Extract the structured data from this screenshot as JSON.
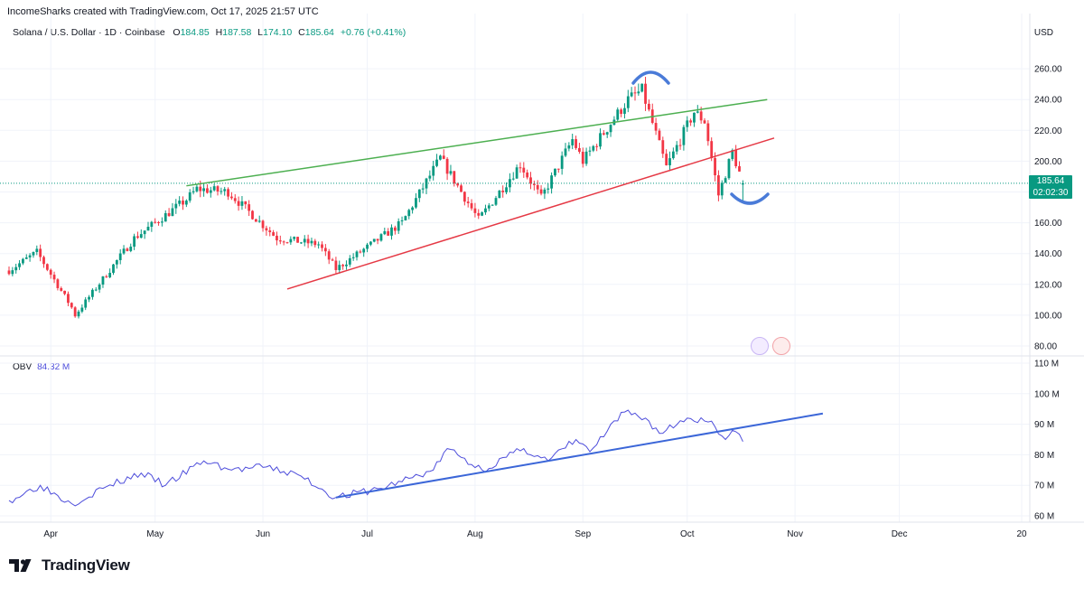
{
  "header": {
    "attribution": "IncomeSharks created with TradingView.com, Oct 17, 2025 21:57 UTC"
  },
  "symbol": {
    "name": "Solana / U.S. Dollar · 1D · Coinbase",
    "o_label": "O",
    "o": "184.85",
    "h_label": "H",
    "h": "187.58",
    "l_label": "L",
    "l": "174.10",
    "c_label": "C",
    "c": "185.64",
    "change": "+0.76 (+0.41%)"
  },
  "currency": "USD",
  "last_price": {
    "price": "185.64",
    "countdown": "02:02:30"
  },
  "obv": {
    "label": "OBV",
    "value": "84.32 M"
  },
  "footer": {
    "brand": "TradingView"
  },
  "colors": {
    "up": "#089981",
    "down": "#f23645",
    "obv": "#4d4ddb",
    "green_line": "#4caf50",
    "red_line": "#e53945",
    "blue_line": "#3b66d8"
  },
  "chart_data": [
    {
      "type": "candlestick",
      "title": "Solana / U.S. Dollar · 1D · Coinbase",
      "ylabel": "USD",
      "yticks": [
        80,
        100,
        120,
        140,
        160,
        180,
        200,
        220,
        240,
        260
      ],
      "xticks": [
        "Apr",
        "May",
        "Jun",
        "Jul",
        "Aug",
        "Sep",
        "Oct",
        "Nov",
        "Dec",
        "20"
      ],
      "x_domain_days": [
        0,
        270
      ],
      "x_domain_labels": [
        "Mar 20",
        "Dec 15"
      ],
      "key_points": [
        {
          "date": "Mar 20",
          "price": 129
        },
        {
          "date": "Mar 28",
          "price": 141
        },
        {
          "date": "Apr 7",
          "price": 105
        },
        {
          "date": "Apr 8",
          "price": 100
        },
        {
          "date": "Apr 25",
          "price": 150
        },
        {
          "date": "May 10",
          "price": 175
        },
        {
          "date": "May 13",
          "price": 182
        },
        {
          "date": "May 22",
          "price": 180
        },
        {
          "date": "Jun 5",
          "price": 150
        },
        {
          "date": "Jun 17",
          "price": 146
        },
        {
          "date": "Jun 22",
          "price": 130
        },
        {
          "date": "Jul 11",
          "price": 160
        },
        {
          "date": "Jul 22",
          "price": 202
        },
        {
          "date": "Aug 2",
          "price": 162
        },
        {
          "date": "Aug 14",
          "price": 198
        },
        {
          "date": "Aug 20",
          "price": 176
        },
        {
          "date": "Aug 29",
          "price": 214
        },
        {
          "date": "Sep 1",
          "price": 200
        },
        {
          "date": "Sep 14",
          "price": 240
        },
        {
          "date": "Sep 18",
          "price": 246
        },
        {
          "date": "Sep 25",
          "price": 196
        },
        {
          "date": "Oct 3",
          "price": 232
        },
        {
          "date": "Oct 6",
          "price": 226
        },
        {
          "date": "Oct 10",
          "price": 178
        },
        {
          "date": "Oct 14",
          "price": 206
        },
        {
          "date": "Oct 17",
          "price": 185.64
        }
      ],
      "trendlines": [
        {
          "name": "upper",
          "color": "green",
          "from": {
            "date": "May 10",
            "price": 184
          },
          "to": {
            "date": "Oct 24",
            "price": 240
          }
        },
        {
          "name": "lower",
          "color": "red",
          "from": {
            "date": "Jun 8",
            "price": 117
          },
          "to": {
            "date": "Oct 26",
            "price": 215
          }
        }
      ]
    },
    {
      "type": "line",
      "title": "OBV",
      "yticks_label": [
        "60 M",
        "70 M",
        "80 M",
        "90 M",
        "100 M",
        "110 M"
      ],
      "yticks": [
        60,
        70,
        80,
        90,
        100,
        110
      ],
      "points": [
        {
          "date": "Mar 20",
          "value": 65
        },
        {
          "date": "Mar 29",
          "value": 70
        },
        {
          "date": "Apr 7",
          "value": 64
        },
        {
          "date": "Apr 16",
          "value": 69
        },
        {
          "date": "Apr 27",
          "value": 74
        },
        {
          "date": "May 4",
          "value": 70
        },
        {
          "date": "May 15",
          "value": 78
        },
        {
          "date": "May 23",
          "value": 75
        },
        {
          "date": "Jun 2",
          "value": 76
        },
        {
          "date": "Jun 12",
          "value": 73
        },
        {
          "date": "Jun 22",
          "value": 66
        },
        {
          "date": "Jul 5",
          "value": 69
        },
        {
          "date": "Jul 20",
          "value": 75
        },
        {
          "date": "Jul 24",
          "value": 82
        },
        {
          "date": "Aug 3",
          "value": 75
        },
        {
          "date": "Aug 15",
          "value": 82
        },
        {
          "date": "Aug 22",
          "value": 78
        },
        {
          "date": "Aug 30",
          "value": 85
        },
        {
          "date": "Sep 3",
          "value": 81
        },
        {
          "date": "Sep 13",
          "value": 94
        },
        {
          "date": "Sep 19",
          "value": 92
        },
        {
          "date": "Sep 23",
          "value": 87
        },
        {
          "date": "Oct 1",
          "value": 92
        },
        {
          "date": "Oct 8",
          "value": 91
        },
        {
          "date": "Oct 12",
          "value": 85
        },
        {
          "date": "Oct 14",
          "value": 88
        },
        {
          "date": "Oct 17",
          "value": 84.32
        }
      ],
      "trendline": {
        "color": "blue",
        "from": {
          "date": "Jun 22",
          "value": 66
        },
        "to": {
          "date": "Nov 9",
          "value": 93.5
        }
      }
    }
  ]
}
